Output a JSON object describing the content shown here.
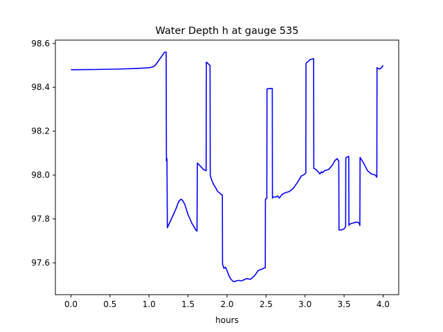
{
  "chart_data": {
    "type": "line",
    "title": "Water Depth h at gauge 535",
    "xlabel": "hours",
    "ylabel": "",
    "xlim": [
      -0.2,
      4.2
    ],
    "ylim": [
      97.455,
      98.615
    ],
    "xticks": [
      0.0,
      0.5,
      1.0,
      1.5,
      2.0,
      2.5,
      3.0,
      3.5,
      4.0
    ],
    "xtick_labels": [
      "0.0",
      "0.5",
      "1.0",
      "1.5",
      "2.0",
      "2.5",
      "3.0",
      "3.5",
      "4.0"
    ],
    "yticks": [
      97.6,
      97.8,
      98.0,
      98.2,
      98.4,
      98.6
    ],
    "ytick_labels": [
      "97.6",
      "97.8",
      "98.0",
      "98.2",
      "98.4",
      "98.6"
    ],
    "grid": false,
    "legend": "none",
    "series": [
      {
        "color": "#0000ff",
        "x": [
          0.0,
          0.3,
          0.6,
          0.85,
          1.0,
          1.05,
          1.08,
          1.12,
          1.16,
          1.2,
          1.22,
          1.223,
          1.225,
          1.228,
          1.23,
          1.235,
          1.3,
          1.35,
          1.38,
          1.41,
          1.43,
          1.46,
          1.5,
          1.55,
          1.6,
          1.61,
          1.615,
          1.62,
          1.66,
          1.7,
          1.73,
          1.732,
          1.735,
          1.78,
          1.782,
          1.785,
          1.8,
          1.83,
          1.85,
          1.88,
          1.9,
          1.93,
          1.94,
          1.942,
          1.945,
          1.96,
          1.98,
          2.0,
          2.02,
          2.05,
          2.08,
          2.1,
          2.12,
          2.15,
          2.18,
          2.2,
          2.25,
          2.3,
          2.35,
          2.4,
          2.45,
          2.49,
          2.492,
          2.495,
          2.51,
          2.512,
          2.515,
          2.58,
          2.582,
          2.585,
          2.63,
          2.65,
          2.66,
          2.67,
          2.7,
          2.72,
          2.75,
          2.8,
          2.85,
          2.9,
          2.95,
          3.0,
          3.01,
          3.012,
          3.015,
          3.06,
          3.1,
          3.11,
          3.112,
          3.115,
          3.14,
          3.16,
          3.18,
          3.19,
          3.21,
          3.22,
          3.25,
          3.3,
          3.35,
          3.38,
          3.41,
          3.42,
          3.43,
          3.432,
          3.435,
          3.47,
          3.5,
          3.52,
          3.522,
          3.525,
          3.56,
          3.562,
          3.565,
          3.6,
          3.65,
          3.68,
          3.7,
          3.702,
          3.705,
          3.75,
          3.8,
          3.85,
          3.9,
          3.92,
          3.922,
          3.925,
          3.94,
          3.96,
          3.98,
          4.0
        ],
        "y": [
          98.48,
          98.481,
          98.483,
          98.486,
          98.489,
          98.493,
          98.5,
          98.52,
          98.54,
          98.56,
          98.56,
          98.065,
          98.07,
          98.072,
          98.075,
          97.76,
          97.81,
          97.85,
          97.88,
          97.89,
          97.885,
          97.865,
          97.82,
          97.78,
          97.75,
          97.745,
          97.745,
          98.055,
          98.04,
          98.025,
          98.02,
          98.02,
          98.515,
          98.5,
          98.5,
          98.0,
          97.98,
          97.955,
          97.945,
          97.925,
          97.92,
          97.91,
          97.91,
          97.6,
          97.59,
          97.575,
          97.58,
          97.565,
          97.545,
          97.525,
          97.515,
          97.515,
          97.518,
          97.52,
          97.518,
          97.52,
          97.528,
          97.525,
          97.54,
          97.565,
          97.572,
          97.578,
          97.89,
          97.89,
          97.895,
          98.39,
          98.393,
          98.395,
          97.895,
          97.9,
          97.9,
          97.905,
          97.9,
          97.895,
          97.91,
          97.915,
          97.92,
          97.925,
          97.94,
          97.965,
          97.995,
          98.005,
          98.01,
          98.505,
          98.51,
          98.525,
          98.53,
          98.53,
          98.03,
          98.03,
          98.025,
          98.018,
          98.01,
          98.005,
          98.015,
          98.01,
          98.02,
          98.025,
          98.045,
          98.065,
          98.075,
          98.07,
          98.065,
          98.065,
          97.75,
          97.75,
          97.755,
          97.765,
          98.075,
          98.08,
          98.085,
          97.77,
          97.775,
          97.78,
          97.785,
          97.785,
          97.775,
          97.77,
          98.08,
          98.055,
          98.02,
          98.005,
          98.0,
          97.99,
          98.49,
          98.488,
          98.485,
          98.483,
          98.49,
          98.5
        ]
      }
    ]
  }
}
